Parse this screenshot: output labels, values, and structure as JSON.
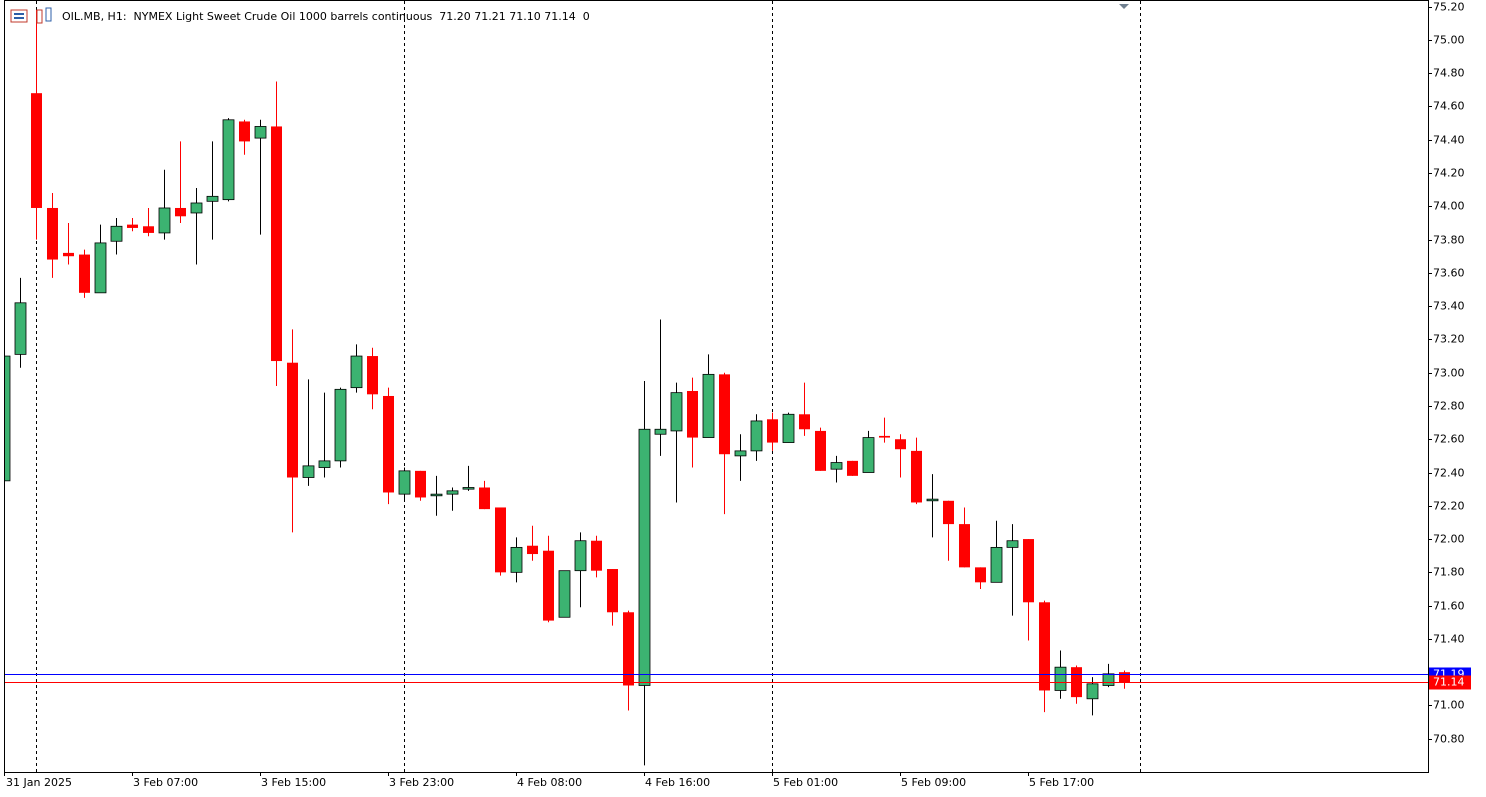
{
  "chart_data": {
    "type": "candlestick",
    "title": "OIL.MB, H1:  NYMEX Light Sweet Crude Oil 1000 barrels continuous  71.20 71.21 71.10 71.14  0",
    "categories": [
      "31 Jan 2025",
      null,
      null,
      null,
      null,
      null,
      null,
      null,
      "3 Feb 07:00",
      null,
      null,
      null,
      null,
      null,
      null,
      null,
      "3 Feb 15:00",
      null,
      null,
      null,
      null,
      null,
      null,
      null,
      "3 Feb 23:00",
      null,
      null,
      null,
      null,
      null,
      null,
      null,
      "4 Feb 08:00",
      null,
      null,
      null,
      null,
      null,
      null,
      null,
      "4 Feb 16:00",
      null,
      null,
      null,
      null,
      null,
      null,
      null,
      "5 Feb 01:00",
      null,
      null,
      null,
      null,
      null,
      null,
      null,
      "5 Feb 09:00",
      null,
      null,
      null,
      null,
      null,
      null,
      null,
      "5 Feb 17:00",
      null,
      null,
      null,
      null,
      null,
      null
    ],
    "open": [
      72.35,
      73.11,
      74.68,
      73.99,
      73.72,
      73.71,
      73.48,
      73.79,
      73.89,
      73.88,
      73.84,
      73.99,
      73.96,
      74.03,
      74.04,
      74.51,
      74.41,
      74.48,
      73.06,
      72.37,
      72.43,
      72.47,
      72.91,
      73.1,
      72.86,
      72.27,
      72.41,
      72.26,
      72.27,
      72.3,
      72.31,
      72.19,
      71.8,
      71.96,
      71.93,
      71.53,
      71.81,
      71.99,
      71.82,
      71.56,
      71.12,
      72.63,
      72.65,
      72.89,
      72.61,
      72.99,
      72.5,
      72.53,
      72.72,
      72.58,
      72.75,
      72.65,
      72.42,
      72.47,
      72.4,
      72.62,
      72.6,
      72.53,
      72.23,
      72.23,
      72.09,
      71.83,
      71.74,
      71.95,
      72.0,
      71.62,
      71.09,
      71.23,
      71.04,
      71.12,
      71.2
    ],
    "high": [
      73.15,
      73.57,
      75.18,
      74.08,
      73.9,
      73.74,
      73.89,
      73.93,
      73.93,
      73.99,
      74.22,
      74.39,
      74.11,
      74.39,
      74.53,
      74.52,
      74.52,
      74.75,
      73.26,
      72.96,
      72.88,
      72.91,
      73.17,
      73.15,
      72.91,
      72.43,
      72.41,
      72.38,
      72.31,
      72.44,
      72.35,
      72.19,
      72.01,
      72.08,
      72.02,
      71.81,
      72.04,
      72.02,
      71.82,
      71.57,
      72.95,
      73.32,
      72.94,
      72.97,
      73.11,
      73.0,
      72.63,
      72.75,
      72.76,
      72.76,
      72.94,
      72.67,
      72.5,
      72.47,
      72.65,
      72.73,
      72.63,
      72.61,
      72.39,
      72.23,
      72.19,
      71.83,
      72.11,
      72.09,
      72.0,
      71.63,
      71.33,
      71.24,
      71.17,
      71.25,
      71.21
    ],
    "low": [
      72.33,
      73.03,
      73.8,
      73.57,
      73.65,
      73.45,
      73.48,
      73.71,
      73.85,
      73.82,
      73.8,
      73.9,
      73.65,
      73.8,
      74.03,
      74.31,
      73.83,
      72.92,
      72.04,
      72.32,
      72.37,
      72.43,
      72.88,
      72.78,
      72.21,
      72.23,
      72.23,
      72.14,
      72.17,
      72.29,
      72.18,
      71.78,
      71.74,
      71.87,
      71.5,
      71.53,
      71.59,
      71.77,
      71.48,
      70.97,
      70.64,
      72.5,
      72.22,
      72.43,
      72.61,
      72.15,
      72.35,
      72.47,
      72.53,
      72.58,
      72.62,
      72.41,
      72.34,
      72.38,
      72.4,
      72.58,
      72.37,
      72.21,
      72.01,
      71.87,
      71.83,
      71.7,
      71.74,
      71.54,
      71.39,
      70.96,
      71.04,
      71.01,
      70.94,
      71.11,
      71.1
    ],
    "close": [
      73.1,
      73.42,
      73.99,
      73.68,
      73.7,
      73.48,
      73.78,
      73.88,
      73.87,
      73.84,
      73.99,
      73.94,
      74.02,
      74.06,
      74.52,
      74.39,
      74.48,
      73.07,
      72.37,
      72.44,
      72.47,
      72.9,
      73.1,
      72.87,
      72.28,
      72.41,
      72.25,
      72.27,
      72.29,
      72.31,
      72.18,
      71.8,
      71.95,
      71.91,
      71.51,
      71.81,
      71.99,
      71.81,
      71.56,
      71.12,
      72.66,
      72.66,
      72.88,
      72.61,
      72.99,
      72.51,
      72.53,
      72.71,
      72.58,
      72.75,
      72.66,
      72.41,
      72.46,
      72.38,
      72.61,
      72.61,
      72.54,
      72.22,
      72.24,
      72.09,
      71.83,
      71.74,
      71.95,
      71.99,
      71.62,
      71.09,
      71.23,
      71.05,
      71.13,
      71.19,
      71.14
    ],
    "up_color": "#3cb371",
    "down_color": "#ff0000",
    "ylim": [
      70.6,
      75.24
    ],
    "yticks": [
      {
        "value": 70.8,
        "label": "70.80"
      },
      {
        "value": 71.0,
        "label": "71.00"
      },
      {
        "value": 71.2,
        "label": "71.20"
      },
      {
        "value": 71.4,
        "label": "71.40"
      },
      {
        "value": 71.6,
        "label": "71.60"
      },
      {
        "value": 71.8,
        "label": "71.80"
      },
      {
        "value": 72.0,
        "label": "72.00"
      },
      {
        "value": 72.2,
        "label": "72.20"
      },
      {
        "value": 72.4,
        "label": "72.40"
      },
      {
        "value": 72.6,
        "label": "72.60"
      },
      {
        "value": 72.8,
        "label": "72.80"
      },
      {
        "value": 73.0,
        "label": "73.00"
      },
      {
        "value": 73.2,
        "label": "73.20"
      },
      {
        "value": 73.4,
        "label": "73.40"
      },
      {
        "value": 73.6,
        "label": "73.60"
      },
      {
        "value": 73.8,
        "label": "73.80"
      },
      {
        "value": 74.0,
        "label": "74.00"
      },
      {
        "value": 74.2,
        "label": "74.20"
      },
      {
        "value": 74.4,
        "label": "74.40"
      },
      {
        "value": 74.6,
        "label": "74.60"
      },
      {
        "value": 74.8,
        "label": "74.80"
      },
      {
        "value": 75.0,
        "label": "75.00"
      },
      {
        "value": 75.2,
        "label": "75.20"
      }
    ],
    "price_lines": [
      {
        "value": 71.19,
        "label": "71.19",
        "color": "#0000ff"
      },
      {
        "value": 71.14,
        "label": "71.14",
        "color": "#ff0000"
      }
    ],
    "grid": false
  }
}
